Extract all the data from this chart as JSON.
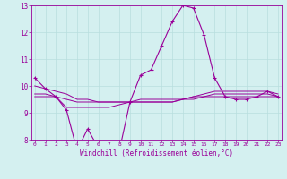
{
  "x": [
    0,
    1,
    2,
    3,
    4,
    5,
    6,
    7,
    8,
    9,
    10,
    11,
    12,
    13,
    14,
    15,
    16,
    17,
    18,
    19,
    20,
    21,
    22,
    23
  ],
  "main_line": [
    10.3,
    9.9,
    9.6,
    9.1,
    7.6,
    8.4,
    7.7,
    7.5,
    7.6,
    9.4,
    10.4,
    10.6,
    11.5,
    12.4,
    13.0,
    12.9,
    11.9,
    10.3,
    9.6,
    9.5,
    9.5,
    9.6,
    9.8,
    9.6
  ],
  "avg_line1": [
    9.6,
    9.6,
    9.6,
    9.2,
    9.2,
    9.2,
    9.2,
    9.2,
    9.3,
    9.4,
    9.5,
    9.5,
    9.5,
    9.5,
    9.5,
    9.6,
    9.6,
    9.7,
    9.7,
    9.7,
    9.7,
    9.7,
    9.7,
    9.6
  ],
  "avg_line2": [
    9.7,
    9.7,
    9.6,
    9.5,
    9.4,
    9.4,
    9.4,
    9.4,
    9.4,
    9.4,
    9.4,
    9.4,
    9.4,
    9.4,
    9.5,
    9.5,
    9.6,
    9.6,
    9.6,
    9.6,
    9.6,
    9.6,
    9.6,
    9.6
  ],
  "avg_line3": [
    10.0,
    9.9,
    9.8,
    9.7,
    9.5,
    9.5,
    9.4,
    9.4,
    9.4,
    9.4,
    9.4,
    9.4,
    9.4,
    9.4,
    9.5,
    9.6,
    9.7,
    9.8,
    9.8,
    9.8,
    9.8,
    9.8,
    9.8,
    9.7
  ],
  "line_color": "#990099",
  "bg_color": "#d4f0f0",
  "grid_color": "#b8dede",
  "text_color": "#990099",
  "xlabel": "Windchill (Refroidissement éolien,°C)",
  "ylim": [
    8,
    13
  ],
  "yticks": [
    8,
    9,
    10,
    11,
    12,
    13
  ],
  "xticks": [
    0,
    1,
    2,
    3,
    4,
    5,
    6,
    7,
    8,
    9,
    10,
    11,
    12,
    13,
    14,
    15,
    16,
    17,
    18,
    19,
    20,
    21,
    22,
    23
  ],
  "figsize": [
    3.2,
    2.0
  ],
  "dpi": 100
}
